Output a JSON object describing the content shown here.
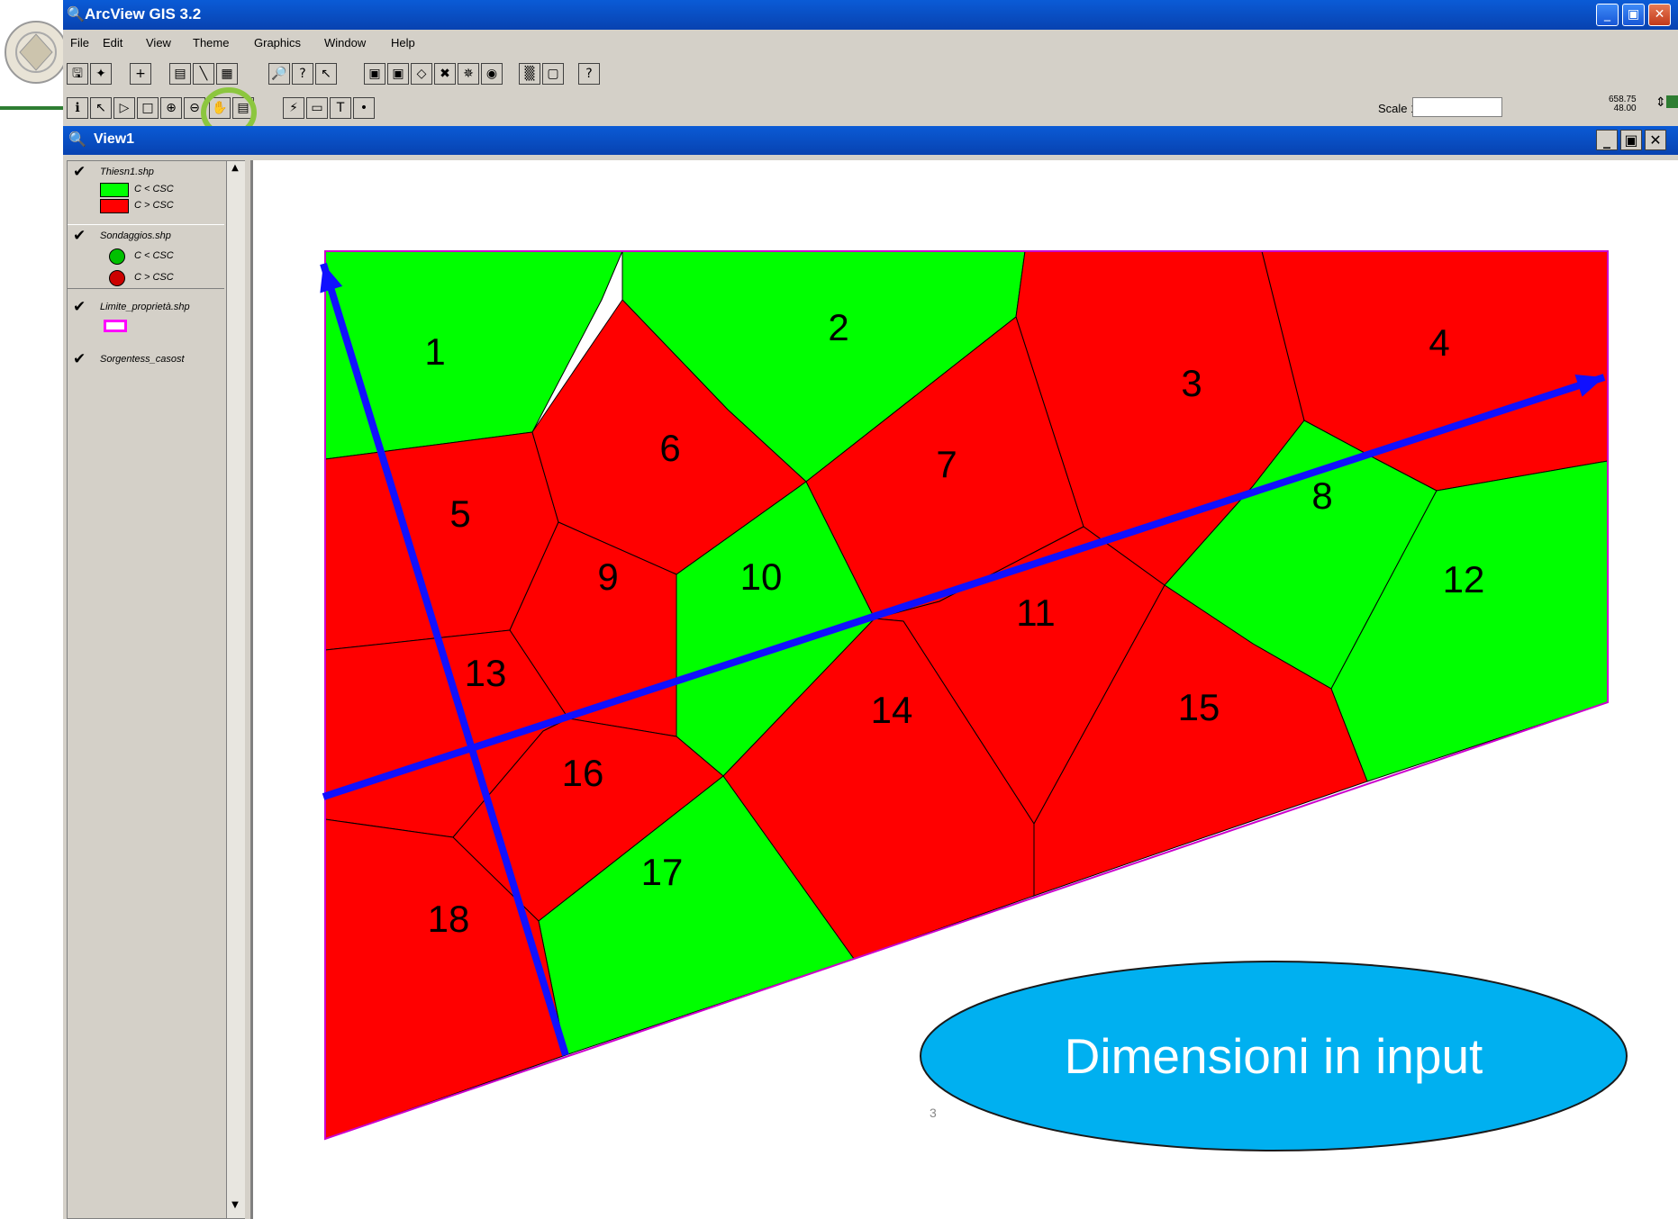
{
  "app": {
    "title": "ArcView GIS 3.2"
  },
  "menu": [
    "File",
    "Edit",
    "View",
    "Theme",
    "Graphics",
    "Window",
    "Help"
  ],
  "toolbar": {
    "scale_label": "Scale 1:",
    "scale_value": "",
    "coord_x": "658.75",
    "coord_y": "48.00"
  },
  "view": {
    "title": "View1"
  },
  "legend": {
    "themes": [
      {
        "name": "Thiesn1.shp",
        "classes": [
          {
            "label": "C < CSC",
            "color": "#00ff00"
          },
          {
            "label": "C > CSC",
            "color": "#ff0000"
          }
        ]
      },
      {
        "name": "Sondaggios.shp",
        "classes": [
          {
            "label": "C < CSC",
            "color": "#00ff00"
          },
          {
            "label": "C > CSC",
            "color": "#ff0000"
          }
        ]
      },
      {
        "name": "Limite_proprietà.shp",
        "classes": []
      },
      {
        "name": "Sorgentess_casost",
        "classes": []
      }
    ]
  },
  "map": {
    "colors": {
      "green": "#00ff00",
      "red": "#ff0000",
      "arrow": "#1010ff",
      "border": "#cc00cc"
    },
    "polygons": [
      {
        "label": "1",
        "fill": "green"
      },
      {
        "label": "2",
        "fill": "green"
      },
      {
        "label": "3",
        "fill": "red"
      },
      {
        "label": "4",
        "fill": "red"
      },
      {
        "label": "5",
        "fill": "red"
      },
      {
        "label": "6",
        "fill": "red"
      },
      {
        "label": "7",
        "fill": "red"
      },
      {
        "label": "8",
        "fill": "green"
      },
      {
        "label": "9",
        "fill": "red"
      },
      {
        "label": "10",
        "fill": "green"
      },
      {
        "label": "11",
        "fill": "red"
      },
      {
        "label": "12",
        "fill": "green"
      },
      {
        "label": "13",
        "fill": "red"
      },
      {
        "label": "14",
        "fill": "red"
      },
      {
        "label": "15",
        "fill": "red"
      },
      {
        "label": "16",
        "fill": "red"
      },
      {
        "label": "17",
        "fill": "green"
      },
      {
        "label": "18",
        "fill": "red"
      }
    ]
  },
  "callout": {
    "text": "Dimensioni in input",
    "color": "#00b0f0"
  },
  "slide": {
    "page_number": "3"
  }
}
